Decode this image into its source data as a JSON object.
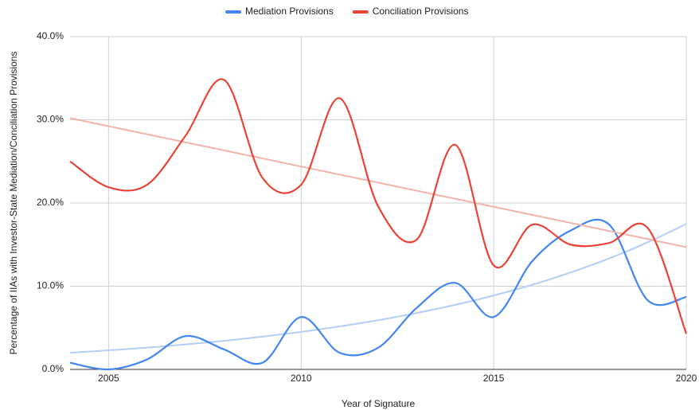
{
  "chart_data": {
    "type": "line",
    "x": [
      2004,
      2005,
      2006,
      2007,
      2008,
      2009,
      2010,
      2011,
      2012,
      2013,
      2014,
      2015,
      2016,
      2017,
      2018,
      2019,
      2020
    ],
    "series": [
      {
        "name": "Mediation Provisions",
        "color": "#4285f4",
        "values": [
          0.8,
          0,
          1.2,
          4.0,
          2.4,
          0.8,
          6.3,
          2.0,
          2.6,
          7.4,
          10.4,
          6.3,
          13.0,
          16.7,
          17.4,
          8.3,
          8.7
        ],
        "trendline": {
          "type": "exponential",
          "color": "#b3cdf8",
          "values": [
            2.0,
            17.5
          ]
        }
      },
      {
        "name": "Conciliation Provisions",
        "color": "#ea4335",
        "values": [
          25.0,
          21.9,
          22.2,
          28.1,
          34.8,
          23.0,
          22.2,
          32.6,
          19.6,
          15.6,
          27.0,
          12.5,
          17.4,
          15.0,
          15.2,
          17.0,
          4.3
        ],
        "trendline": {
          "type": "linear",
          "color": "#f4b2ab",
          "values": [
            30.2,
            14.7
          ]
        }
      }
    ],
    "xlabel": "Year of Signature",
    "ylabel": "Percentage of IIAs with Investor-State Mediation/Conciliation Provisions",
    "xlim": [
      2004,
      2020
    ],
    "xticks": [
      2005,
      2010,
      2015,
      2020
    ],
    "ylim": [
      0,
      40
    ],
    "yticks": [
      {
        "value": 0,
        "label": "0.0%"
      },
      {
        "value": 10,
        "label": "10.0%"
      },
      {
        "value": 20,
        "label": "20.0%"
      },
      {
        "value": 30,
        "label": "30.0%"
      },
      {
        "value": 40,
        "label": "40.0%"
      }
    ],
    "grid": true,
    "legend": "top"
  }
}
